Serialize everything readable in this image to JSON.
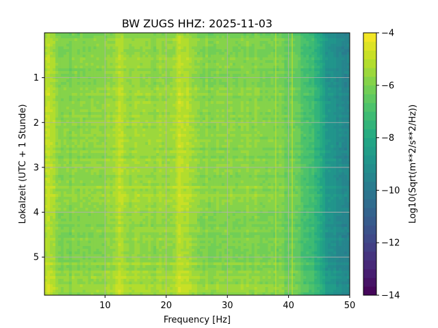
{
  "chart_data": {
    "type": "heatmap",
    "title": "BW ZUGS  HHZ: 2025-11-03",
    "xlabel": "Frequency [Hz]",
    "ylabel": "Lokalzeit (UTC + 1 Stunde)",
    "xlim": [
      0.1,
      50
    ],
    "ylim": [
      5.85,
      0.0
    ],
    "x_ticks": [
      10,
      20,
      30,
      40,
      50
    ],
    "x_tick_labels": [
      "10",
      "20",
      "30",
      "40",
      "50"
    ],
    "y_ticks": [
      1,
      2,
      3,
      4,
      5
    ],
    "y_tick_labels": [
      "1",
      "2",
      "3",
      "4",
      "5"
    ],
    "grid": true,
    "colorbar": {
      "label": "Log10(Sqrt(m**2/s**2/Hz))",
      "vmin": -14,
      "vmax": -4,
      "ticks": [
        -4,
        -6,
        -8,
        -10,
        -12,
        -14
      ],
      "tick_labels": [
        "−4",
        "−6",
        "−8",
        "−10",
        "−12",
        "−14"
      ],
      "levels": 30,
      "colormap": "viridis"
    },
    "spectral_profile": {
      "frequency_hz": [
        0.1,
        0.5,
        1,
        3,
        6,
        9,
        11,
        12.5,
        14,
        18,
        21.5,
        22,
        26,
        30,
        34,
        37,
        39.5,
        41,
        43,
        45,
        46,
        47,
        48,
        49,
        50
      ],
      "level": [
        -5.6,
        -4.8,
        -5.1,
        -6.0,
        -5.9,
        -5.8,
        -5.5,
        -5.2,
        -5.6,
        -5.7,
        -5.4,
        -5.0,
        -5.8,
        -5.8,
        -5.8,
        -5.9,
        -6.2,
        -6.4,
        -6.9,
        -7.6,
        -8.7,
        -9.0,
        -9.2,
        -9.3,
        -9.4
      ]
    },
    "time_modulation": {
      "hour": [
        0,
        0.6,
        1.3,
        2.2,
        3.0,
        3.6,
        4.2,
        4.8,
        5.3,
        5.85
      ],
      "offset": [
        -0.15,
        -0.1,
        0.0,
        0.15,
        0.05,
        0.25,
        0.0,
        -0.05,
        0.1,
        0.2
      ]
    },
    "narrowband_lines_hz": [
      21.8,
      40.6,
      37.9
    ]
  }
}
